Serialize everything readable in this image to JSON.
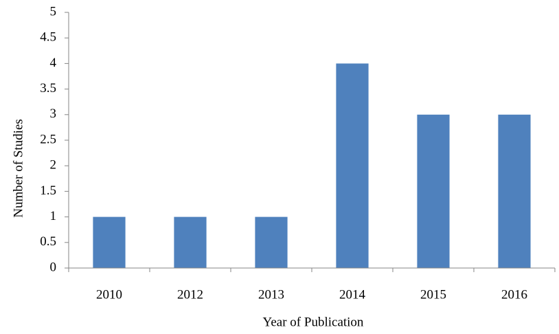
{
  "chart_data": {
    "type": "bar",
    "categories": [
      "2010",
      "2012",
      "2013",
      "2014",
      "2015",
      "2016"
    ],
    "values": [
      1,
      1,
      1,
      4,
      3,
      3
    ],
    "color": "#4f81bd",
    "x_label": "Year of Publication",
    "y_label": "Number of Studies",
    "ylim": [
      0,
      5
    ],
    "yticks": [
      0,
      0.5,
      1,
      1.5,
      2,
      2.5,
      3,
      3.5,
      4,
      4.5,
      5
    ],
    "grid": false
  }
}
